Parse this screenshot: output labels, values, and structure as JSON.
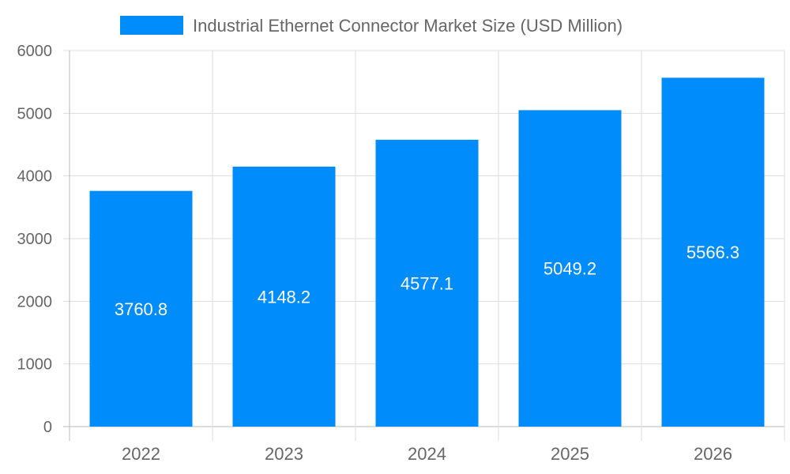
{
  "chart_data": {
    "type": "bar",
    "categories": [
      "2022",
      "2023",
      "2024",
      "2025",
      "2026"
    ],
    "series": [
      {
        "name": "Industrial Ethernet Connector Market Size (USD Million)",
        "values": [
          3760.8,
          4148.2,
          4577.1,
          5049.2,
          5566.3
        ]
      }
    ],
    "data_labels": [
      "3760.8",
      "4148.2",
      "4577.1",
      "5049.2",
      "5566.3"
    ],
    "yticks": [
      "0",
      "1000",
      "2000",
      "3000",
      "4000",
      "5000",
      "6000"
    ],
    "ylim": [
      0,
      6000
    ],
    "grid": true,
    "legend": "top-center",
    "colors": {
      "bar": "#008cfa",
      "grid": "#dddddd",
      "text": "#666666"
    }
  }
}
